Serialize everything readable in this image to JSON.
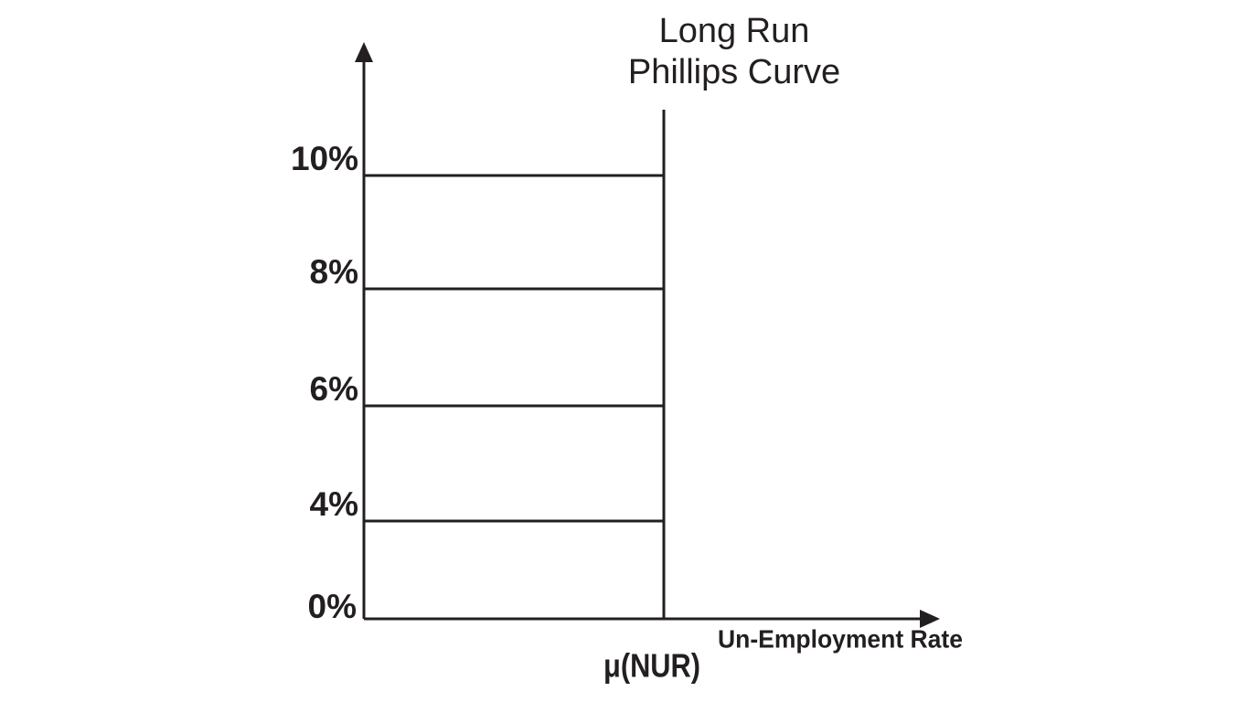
{
  "title": [
    "Long Run",
    "Phillips Curve"
  ],
  "y_axis_labels": [
    "10%",
    "8%",
    "6%",
    "4%",
    "0%"
  ],
  "x_axis_label": "Un-Employment Rate",
  "curve_label": "μ(NUR)"
}
